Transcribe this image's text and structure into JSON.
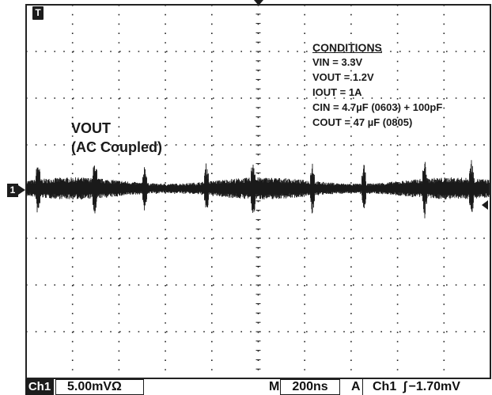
{
  "markers": {
    "trigger_time_label": "T",
    "channel_ref_label": "1"
  },
  "waveform": {
    "label": "VOUT",
    "sublabel": "(AC Coupled)"
  },
  "conditions": {
    "title": "CONDITIONS",
    "lines": [
      "VIN = 3.3V",
      "VOUT = 1.2V",
      "IOUT = 1A",
      "CIN = 4.7µF (0603) + 100pF",
      "COUT = 47 µF (0805)"
    ]
  },
  "status_bar": {
    "channel": "Ch1",
    "scale": "5.00mVΩ",
    "timebase_prefix": "M",
    "timebase": "200ns",
    "trigger_prefix": "A",
    "trigger_channel": "Ch1",
    "trigger_symbol": "ʃ",
    "trigger_level": "−1.70mV"
  },
  "colors": {
    "background": "#ffffff",
    "grid": "#222222",
    "trace": "#1a1a1a",
    "text": "#1a1a1a"
  }
}
